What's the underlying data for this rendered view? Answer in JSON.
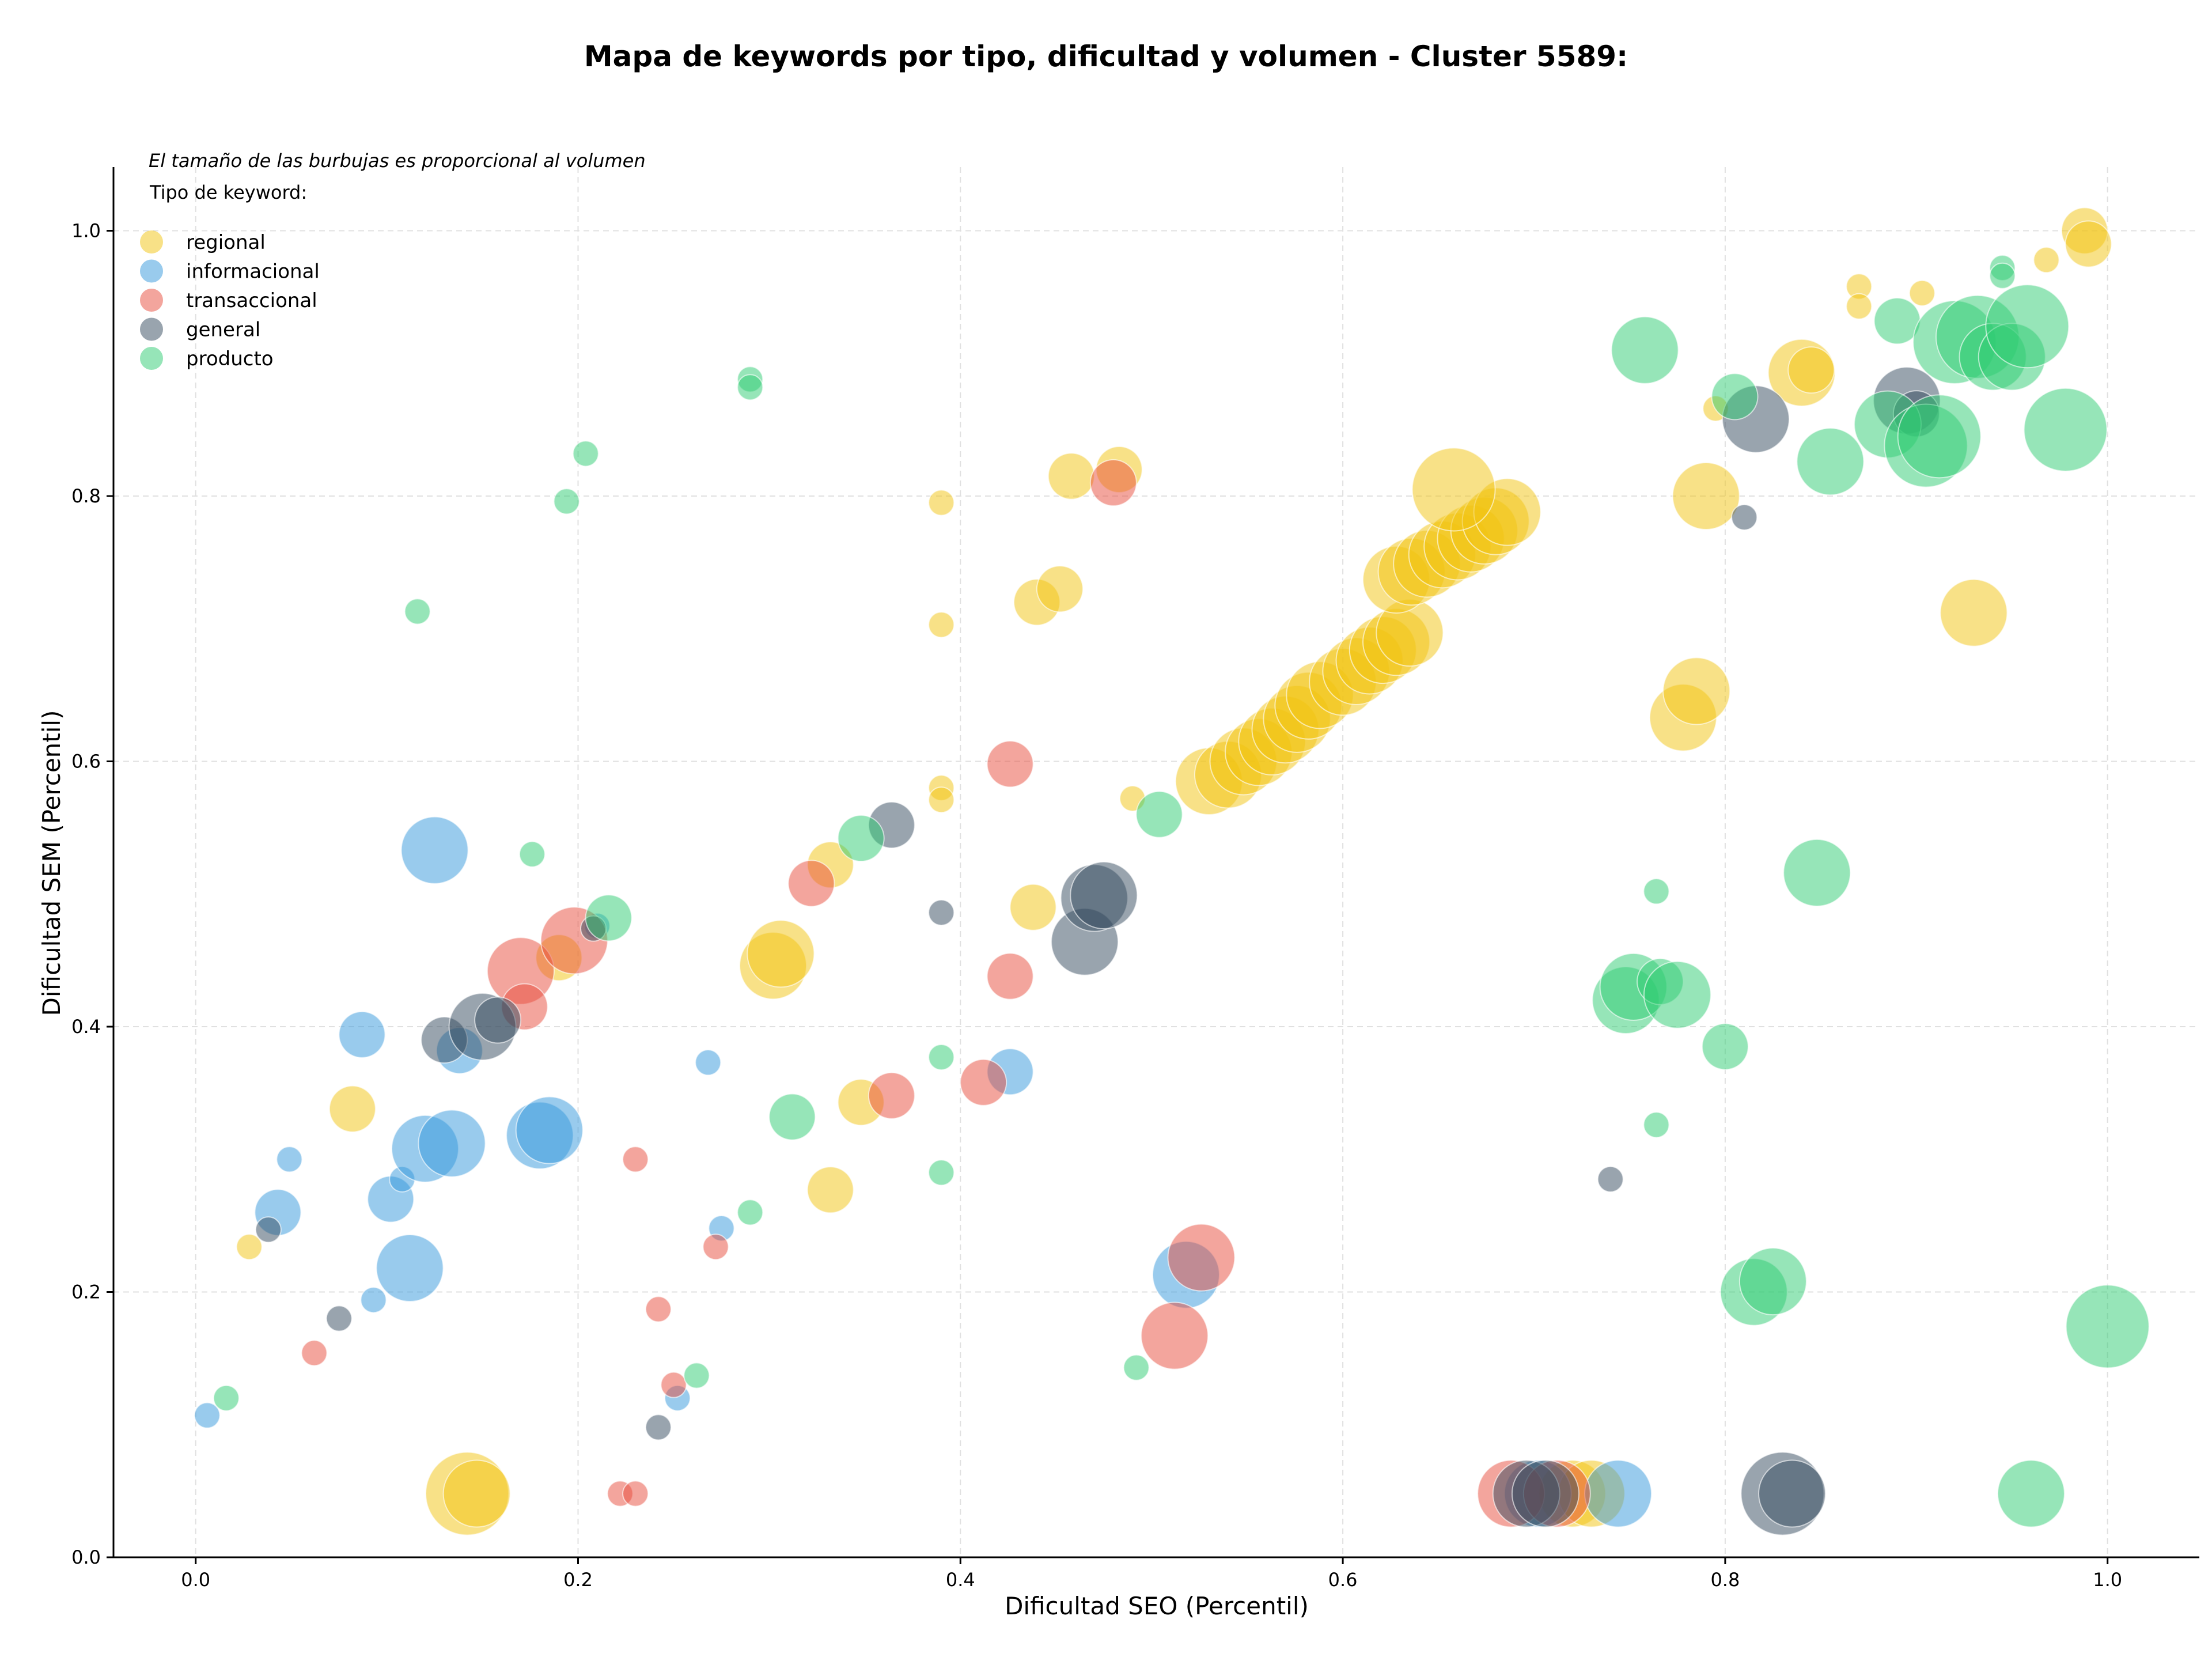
{
  "chart_data": {
    "type": "scatter",
    "title": "Mapa de keywords por tipo, dificultad y volumen - Cluster 5589:",
    "xlabel": "Dificultad SEO (Percentil)",
    "ylabel": "Dificultad SEM (Percentil)",
    "xlim": [
      -0.043,
      1.048
    ],
    "ylim": [
      0.0,
      1.048
    ],
    "xticks": [
      "0.0",
      "0.2",
      "0.4",
      "0.6",
      "0.8",
      "1.0"
    ],
    "yticks": [
      "0.0",
      "0.2",
      "0.4",
      "0.6",
      "0.8",
      "1.0"
    ],
    "grid": true,
    "note": "El tamaño de las burbujas es proporcional al volumen",
    "legend": {
      "title": "Tipo de keyword:",
      "placement": "top-left",
      "entries": [
        "regional",
        "informacional",
        "transaccional",
        "general",
        "producto"
      ]
    },
    "colors": {
      "regional": "#f1c40f",
      "informacional": "#3498db",
      "transaccional": "#e74c3c",
      "general": "#34495e",
      "producto": "#2ecc71"
    },
    "series": [
      {
        "name": "regional",
        "points": [
          {
            "x": 0.028,
            "y": 0.234,
            "s": 1
          },
          {
            "x": 0.082,
            "y": 0.338,
            "s": 2
          },
          {
            "x": 0.142,
            "y": 0.048,
            "s": 4
          },
          {
            "x": 0.147,
            "y": 0.048,
            "s": 3
          },
          {
            "x": 0.19,
            "y": 0.452,
            "s": 2
          },
          {
            "x": 0.302,
            "y": 0.446,
            "s": 3
          },
          {
            "x": 0.306,
            "y": 0.455,
            "s": 3
          },
          {
            "x": 0.332,
            "y": 0.277,
            "s": 2
          },
          {
            "x": 0.332,
            "y": 0.522,
            "s": 2
          },
          {
            "x": 0.348,
            "y": 0.343,
            "s": 2
          },
          {
            "x": 0.39,
            "y": 0.58,
            "s": 1
          },
          {
            "x": 0.39,
            "y": 0.571,
            "s": 1
          },
          {
            "x": 0.39,
            "y": 0.703,
            "s": 1
          },
          {
            "x": 0.39,
            "y": 0.795,
            "s": 1
          },
          {
            "x": 0.438,
            "y": 0.49,
            "s": 2
          },
          {
            "x": 0.44,
            "y": 0.72,
            "s": 2
          },
          {
            "x": 0.452,
            "y": 0.73,
            "s": 2
          },
          {
            "x": 0.458,
            "y": 0.815,
            "s": 2
          },
          {
            "x": 0.483,
            "y": 0.82,
            "s": 2
          },
          {
            "x": 0.49,
            "y": 0.572,
            "s": 1
          },
          {
            "x": 0.53,
            "y": 0.585,
            "s": 3
          },
          {
            "x": 0.54,
            "y": 0.59,
            "s": 3
          },
          {
            "x": 0.548,
            "y": 0.6,
            "s": 3
          },
          {
            "x": 0.556,
            "y": 0.607,
            "s": 3
          },
          {
            "x": 0.563,
            "y": 0.615,
            "s": 3
          },
          {
            "x": 0.57,
            "y": 0.624,
            "s": 3
          },
          {
            "x": 0.576,
            "y": 0.632,
            "s": 3
          },
          {
            "x": 0.582,
            "y": 0.642,
            "s": 3
          },
          {
            "x": 0.588,
            "y": 0.65,
            "s": 3
          },
          {
            "x": 0.6,
            "y": 0.66,
            "s": 3
          },
          {
            "x": 0.607,
            "y": 0.668,
            "s": 3
          },
          {
            "x": 0.614,
            "y": 0.676,
            "s": 3
          },
          {
            "x": 0.621,
            "y": 0.684,
            "s": 3
          },
          {
            "x": 0.628,
            "y": 0.69,
            "s": 3
          },
          {
            "x": 0.635,
            "y": 0.697,
            "s": 3
          },
          {
            "x": 0.628,
            "y": 0.737,
            "s": 3
          },
          {
            "x": 0.636,
            "y": 0.743,
            "s": 3
          },
          {
            "x": 0.644,
            "y": 0.749,
            "s": 3
          },
          {
            "x": 0.652,
            "y": 0.756,
            "s": 3
          },
          {
            "x": 0.66,
            "y": 0.762,
            "s": 3
          },
          {
            "x": 0.667,
            "y": 0.768,
            "s": 3
          },
          {
            "x": 0.674,
            "y": 0.774,
            "s": 3
          },
          {
            "x": 0.68,
            "y": 0.781,
            "s": 3
          },
          {
            "x": 0.686,
            "y": 0.788,
            "s": 3
          },
          {
            "x": 0.658,
            "y": 0.805,
            "s": 4
          },
          {
            "x": 0.72,
            "y": 0.048,
            "s": 3
          },
          {
            "x": 0.73,
            "y": 0.048,
            "s": 3
          },
          {
            "x": 0.778,
            "y": 0.633,
            "s": 3
          },
          {
            "x": 0.785,
            "y": 0.653,
            "s": 3
          },
          {
            "x": 0.79,
            "y": 0.8,
            "s": 3
          },
          {
            "x": 0.795,
            "y": 0.866,
            "s": 1
          },
          {
            "x": 0.84,
            "y": 0.893,
            "s": 3
          },
          {
            "x": 0.845,
            "y": 0.895,
            "s": 2
          },
          {
            "x": 0.87,
            "y": 0.958,
            "s": 1
          },
          {
            "x": 0.87,
            "y": 0.943,
            "s": 1
          },
          {
            "x": 0.903,
            "y": 0.953,
            "s": 1
          },
          {
            "x": 0.93,
            "y": 0.712,
            "s": 3
          },
          {
            "x": 0.968,
            "y": 0.978,
            "s": 1
          },
          {
            "x": 0.988,
            "y": 1.0,
            "s": 2
          },
          {
            "x": 0.99,
            "y": 0.99,
            "s": 2
          }
        ]
      },
      {
        "name": "informacional",
        "points": [
          {
            "x": 0.006,
            "y": 0.107,
            "s": 1
          },
          {
            "x": 0.043,
            "y": 0.26,
            "s": 2
          },
          {
            "x": 0.049,
            "y": 0.3,
            "s": 1
          },
          {
            "x": 0.087,
            "y": 0.394,
            "s": 2
          },
          {
            "x": 0.093,
            "y": 0.194,
            "s": 1
          },
          {
            "x": 0.102,
            "y": 0.27,
            "s": 2
          },
          {
            "x": 0.108,
            "y": 0.285,
            "s": 1
          },
          {
            "x": 0.112,
            "y": 0.218,
            "s": 3
          },
          {
            "x": 0.12,
            "y": 0.308,
            "s": 3
          },
          {
            "x": 0.125,
            "y": 0.533,
            "s": 3
          },
          {
            "x": 0.134,
            "y": 0.312,
            "s": 3
          },
          {
            "x": 0.138,
            "y": 0.382,
            "s": 2
          },
          {
            "x": 0.18,
            "y": 0.318,
            "s": 3
          },
          {
            "x": 0.185,
            "y": 0.322,
            "s": 3
          },
          {
            "x": 0.21,
            "y": 0.476,
            "s": 1
          },
          {
            "x": 0.252,
            "y": 0.12,
            "s": 1
          },
          {
            "x": 0.268,
            "y": 0.373,
            "s": 1
          },
          {
            "x": 0.275,
            "y": 0.248,
            "s": 1
          },
          {
            "x": 0.426,
            "y": 0.366,
            "s": 2
          },
          {
            "x": 0.518,
            "y": 0.213,
            "s": 3
          },
          {
            "x": 0.702,
            "y": 0.048,
            "s": 3
          },
          {
            "x": 0.744,
            "y": 0.048,
            "s": 3
          }
        ]
      },
      {
        "name": "transaccional",
        "points": [
          {
            "x": 0.062,
            "y": 0.154,
            "s": 1
          },
          {
            "x": 0.17,
            "y": 0.442,
            "s": 3
          },
          {
            "x": 0.172,
            "y": 0.415,
            "s": 2
          },
          {
            "x": 0.198,
            "y": 0.465,
            "s": 3
          },
          {
            "x": 0.222,
            "y": 0.048,
            "s": 1
          },
          {
            "x": 0.23,
            "y": 0.048,
            "s": 1
          },
          {
            "x": 0.23,
            "y": 0.3,
            "s": 1
          },
          {
            "x": 0.242,
            "y": 0.187,
            "s": 1
          },
          {
            "x": 0.25,
            "y": 0.13,
            "s": 1
          },
          {
            "x": 0.272,
            "y": 0.234,
            "s": 1
          },
          {
            "x": 0.322,
            "y": 0.508,
            "s": 2
          },
          {
            "x": 0.364,
            "y": 0.348,
            "s": 2
          },
          {
            "x": 0.412,
            "y": 0.358,
            "s": 2
          },
          {
            "x": 0.426,
            "y": 0.598,
            "s": 2
          },
          {
            "x": 0.426,
            "y": 0.438,
            "s": 2
          },
          {
            "x": 0.48,
            "y": 0.81,
            "s": 2
          },
          {
            "x": 0.512,
            "y": 0.167,
            "s": 3
          },
          {
            "x": 0.526,
            "y": 0.226,
            "s": 3
          },
          {
            "x": 0.688,
            "y": 0.048,
            "s": 3
          },
          {
            "x": 0.712,
            "y": 0.048,
            "s": 3
          }
        ]
      },
      {
        "name": "general",
        "points": [
          {
            "x": 0.038,
            "y": 0.247,
            "s": 1
          },
          {
            "x": 0.075,
            "y": 0.18,
            "s": 1
          },
          {
            "x": 0.13,
            "y": 0.39,
            "s": 2
          },
          {
            "x": 0.15,
            "y": 0.4,
            "s": 3
          },
          {
            "x": 0.158,
            "y": 0.405,
            "s": 2
          },
          {
            "x": 0.208,
            "y": 0.474,
            "s": 1
          },
          {
            "x": 0.242,
            "y": 0.098,
            "s": 1
          },
          {
            "x": 0.364,
            "y": 0.552,
            "s": 2
          },
          {
            "x": 0.39,
            "y": 0.486,
            "s": 1
          },
          {
            "x": 0.465,
            "y": 0.464,
            "s": 3
          },
          {
            "x": 0.47,
            "y": 0.497,
            "s": 3
          },
          {
            "x": 0.475,
            "y": 0.499,
            "s": 3
          },
          {
            "x": 0.696,
            "y": 0.048,
            "s": 3
          },
          {
            "x": 0.706,
            "y": 0.048,
            "s": 3
          },
          {
            "x": 0.74,
            "y": 0.285,
            "s": 1
          },
          {
            "x": 0.81,
            "y": 0.784,
            "s": 1
          },
          {
            "x": 0.816,
            "y": 0.858,
            "s": 3
          },
          {
            "x": 0.83,
            "y": 0.048,
            "s": 4
          },
          {
            "x": 0.835,
            "y": 0.048,
            "s": 3
          },
          {
            "x": 0.895,
            "y": 0.872,
            "s": 3
          },
          {
            "x": 0.9,
            "y": 0.862,
            "s": 2
          }
        ]
      },
      {
        "name": "producto",
        "points": [
          {
            "x": 0.016,
            "y": 0.12,
            "s": 1
          },
          {
            "x": 0.116,
            "y": 0.713,
            "s": 1
          },
          {
            "x": 0.176,
            "y": 0.53,
            "s": 1
          },
          {
            "x": 0.194,
            "y": 0.796,
            "s": 1
          },
          {
            "x": 0.204,
            "y": 0.832,
            "s": 1
          },
          {
            "x": 0.216,
            "y": 0.482,
            "s": 2
          },
          {
            "x": 0.262,
            "y": 0.137,
            "s": 1
          },
          {
            "x": 0.29,
            "y": 0.888,
            "s": 1
          },
          {
            "x": 0.29,
            "y": 0.882,
            "s": 1
          },
          {
            "x": 0.29,
            "y": 0.26,
            "s": 1
          },
          {
            "x": 0.312,
            "y": 0.332,
            "s": 2
          },
          {
            "x": 0.348,
            "y": 0.542,
            "s": 2
          },
          {
            "x": 0.39,
            "y": 0.377,
            "s": 1
          },
          {
            "x": 0.39,
            "y": 0.29,
            "s": 1
          },
          {
            "x": 0.492,
            "y": 0.143,
            "s": 1
          },
          {
            "x": 0.504,
            "y": 0.56,
            "s": 2
          },
          {
            "x": 0.748,
            "y": 0.42,
            "s": 3
          },
          {
            "x": 0.752,
            "y": 0.43,
            "s": 3
          },
          {
            "x": 0.758,
            "y": 0.91,
            "s": 3
          },
          {
            "x": 0.764,
            "y": 0.502,
            "s": 1
          },
          {
            "x": 0.764,
            "y": 0.326,
            "s": 1
          },
          {
            "x": 0.766,
            "y": 0.434,
            "s": 2
          },
          {
            "x": 0.775,
            "y": 0.424,
            "s": 3
          },
          {
            "x": 0.8,
            "y": 0.385,
            "s": 2
          },
          {
            "x": 0.805,
            "y": 0.875,
            "s": 2
          },
          {
            "x": 0.815,
            "y": 0.2,
            "s": 3
          },
          {
            "x": 0.825,
            "y": 0.208,
            "s": 3
          },
          {
            "x": 0.848,
            "y": 0.516,
            "s": 3
          },
          {
            "x": 0.855,
            "y": 0.826,
            "s": 3
          },
          {
            "x": 0.885,
            "y": 0.854,
            "s": 3
          },
          {
            "x": 0.89,
            "y": 0.932,
            "s": 2
          },
          {
            "x": 0.905,
            "y": 0.838,
            "s": 4
          },
          {
            "x": 0.912,
            "y": 0.845,
            "s": 4
          },
          {
            "x": 0.92,
            "y": 0.916,
            "s": 4
          },
          {
            "x": 0.932,
            "y": 0.92,
            "s": 4
          },
          {
            "x": 0.94,
            "y": 0.905,
            "s": 3
          },
          {
            "x": 0.945,
            "y": 0.972,
            "s": 1
          },
          {
            "x": 0.95,
            "y": 0.905,
            "s": 3
          },
          {
            "x": 0.958,
            "y": 0.928,
            "s": 4
          },
          {
            "x": 0.96,
            "y": 0.048,
            "s": 3
          },
          {
            "x": 0.978,
            "y": 0.85,
            "s": 4
          },
          {
            "x": 1.0,
            "y": 0.174,
            "s": 4
          },
          {
            "x": 0.945,
            "y": 0.966,
            "s": 1
          }
        ]
      }
    ]
  }
}
